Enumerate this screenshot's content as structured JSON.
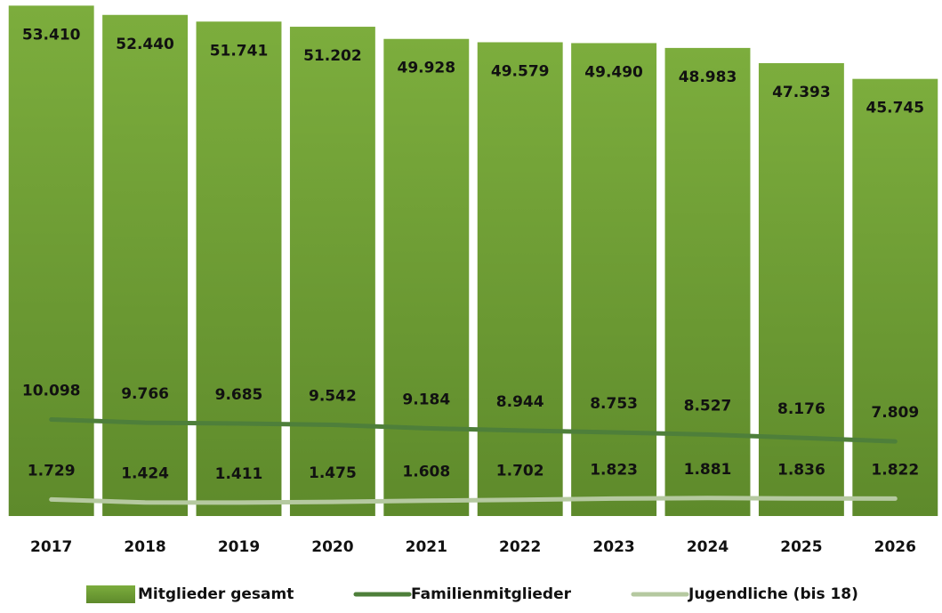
{
  "chart_data": {
    "type": "bar",
    "categories": [
      "2017",
      "2018",
      "2019",
      "2020",
      "2021",
      "2022",
      "2023",
      "2024",
      "2025",
      "2026"
    ],
    "ylim": [
      0,
      54000
    ],
    "series": [
      {
        "name": "Mitglieder gesamt",
        "type": "bar",
        "color": "#6f9e35",
        "values": [
          53410,
          52440,
          51741,
          51202,
          49928,
          49579,
          49490,
          48983,
          47393,
          45745
        ],
        "value_labels": [
          "53.410",
          "52.440",
          "51.741",
          "51.202",
          "49.928",
          "49.579",
          "49.490",
          "48.983",
          "47.393",
          "45.745"
        ]
      },
      {
        "name": "Familienmitglieder",
        "type": "line",
        "color": "#4e7f3a",
        "values": [
          10098,
          9766,
          9685,
          9542,
          9184,
          8944,
          8753,
          8527,
          8176,
          7809
        ],
        "value_labels": [
          "10.098",
          "9.766",
          "9.685",
          "9.542",
          "9.184",
          "8.944",
          "8.753",
          "8.527",
          "8.176",
          "7.809"
        ]
      },
      {
        "name": "Jugendliche (bis 18)",
        "type": "line",
        "color": "#b5c9a0",
        "values": [
          1729,
          1424,
          1411,
          1475,
          1608,
          1702,
          1823,
          1881,
          1836,
          1822
        ],
        "value_labels": [
          "1.729",
          "1.424",
          "1.411",
          "1.475",
          "1.608",
          "1.702",
          "1.823",
          "1.881",
          "1.836",
          "1.822"
        ]
      }
    ],
    "legend": "bottom"
  }
}
